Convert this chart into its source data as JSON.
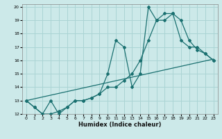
{
  "background_color": "#cce9e9",
  "grid_color": "#aad4d4",
  "line_color": "#1a7070",
  "xlim": [
    -0.5,
    23.5
  ],
  "ylim": [
    12,
    20.2
  ],
  "xticks": [
    0,
    1,
    2,
    3,
    4,
    5,
    6,
    7,
    8,
    9,
    10,
    11,
    12,
    13,
    14,
    15,
    16,
    17,
    18,
    19,
    20,
    21,
    22,
    23
  ],
  "yticks": [
    12,
    13,
    14,
    15,
    16,
    17,
    18,
    19,
    20
  ],
  "xlabel": "Humidex (Indice chaleur)",
  "series1_x": [
    0,
    1,
    2,
    3,
    4,
    5,
    6,
    7,
    8,
    9,
    10,
    11,
    12,
    13,
    14,
    15,
    16,
    17,
    18,
    19,
    20,
    21,
    22,
    23
  ],
  "series1_y": [
    13.0,
    12.5,
    12.0,
    13.0,
    12.0,
    12.5,
    13.0,
    13.0,
    13.2,
    13.5,
    15.0,
    17.5,
    17.0,
    14.0,
    15.0,
    20.0,
    19.0,
    19.0,
    19.5,
    19.0,
    17.5,
    16.8,
    16.5,
    16.0
  ],
  "series2_x": [
    0,
    1,
    2,
    3,
    4,
    5,
    6,
    7,
    8,
    9,
    10,
    11,
    12,
    13,
    14,
    15,
    16,
    17,
    18,
    19,
    20,
    21,
    22,
    23
  ],
  "series2_y": [
    13.0,
    12.5,
    12.0,
    12.0,
    12.2,
    12.5,
    13.0,
    13.0,
    13.2,
    13.5,
    14.0,
    14.0,
    14.5,
    15.0,
    16.0,
    17.5,
    19.0,
    19.5,
    19.5,
    17.5,
    17.0,
    17.0,
    16.5,
    16.0
  ],
  "series3_x": [
    0,
    23
  ],
  "series3_y": [
    13.0,
    16.1
  ]
}
